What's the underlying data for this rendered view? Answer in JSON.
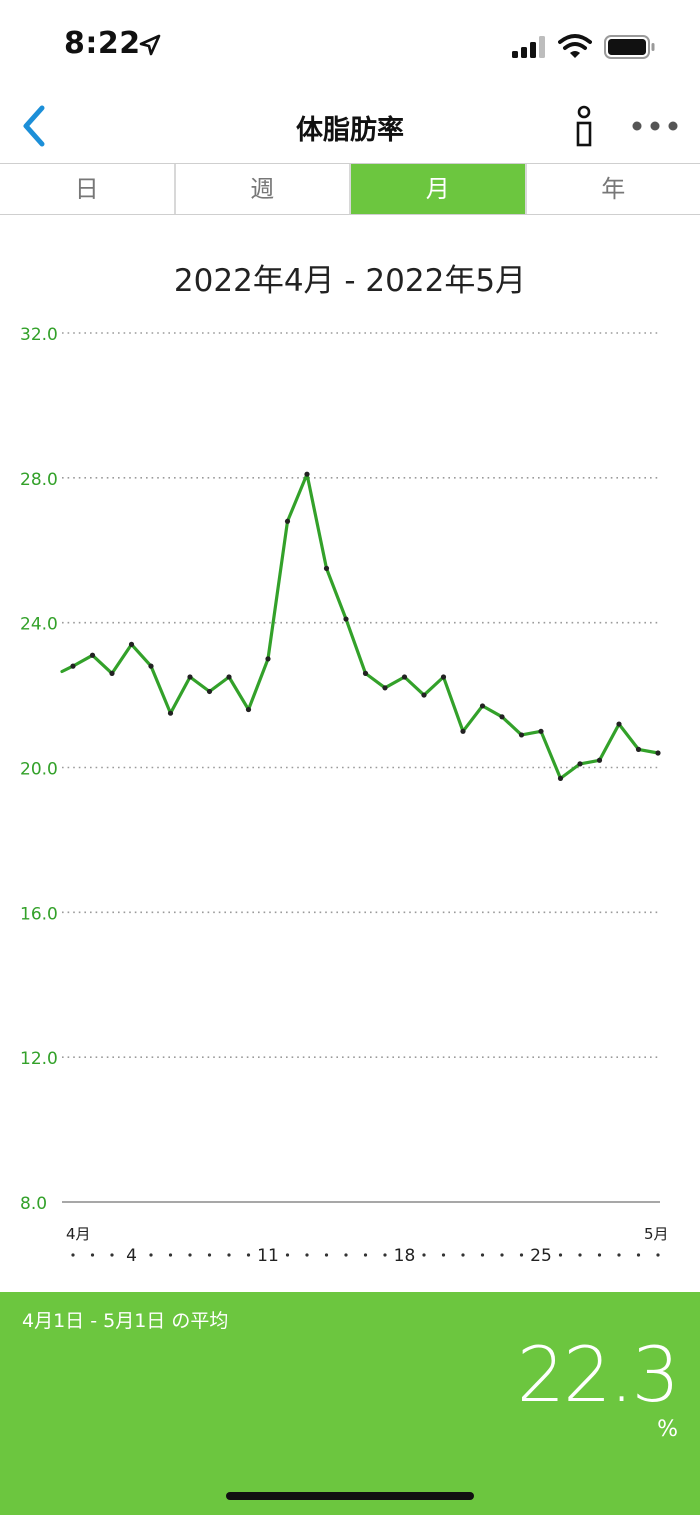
{
  "status_bar": {
    "time": "8:22"
  },
  "nav": {
    "title": "体脂肪率"
  },
  "tabs": [
    {
      "label": "日",
      "active": false
    },
    {
      "label": "週",
      "active": false
    },
    {
      "label": "月",
      "active": true
    },
    {
      "label": "年",
      "active": false
    }
  ],
  "range_title": "2022年4月 - 2022年5月",
  "chart_data": {
    "type": "line",
    "title": "",
    "xlabel": "",
    "ylabel": "",
    "ylim": [
      8.0,
      32.0
    ],
    "y_ticks": [
      "32.0",
      "28.0",
      "24.0",
      "20.0",
      "16.0",
      "12.0",
      "8.0"
    ],
    "x_month_labels": [
      "4月",
      "5月"
    ],
    "x_day_labels": [
      "4",
      "11",
      "18",
      "25"
    ],
    "grid": true,
    "color": "#33a12a",
    "series": [
      {
        "x": [
          "2022-04-01",
          "2022-04-02",
          "2022-04-03",
          "2022-04-04",
          "2022-04-05",
          "2022-04-06",
          "2022-04-07",
          "2022-04-08",
          "2022-04-09",
          "2022-04-10",
          "2022-04-11",
          "2022-04-12",
          "2022-04-13",
          "2022-04-14",
          "2022-04-15",
          "2022-04-16",
          "2022-04-17",
          "2022-04-18",
          "2022-04-19",
          "2022-04-20",
          "2022-04-21",
          "2022-04-22",
          "2022-04-23",
          "2022-04-24",
          "2022-04-25",
          "2022-04-26",
          "2022-04-27",
          "2022-04-28",
          "2022-04-29",
          "2022-04-30",
          "2022-05-01"
        ],
        "values": [
          22.8,
          23.1,
          22.6,
          23.4,
          22.8,
          21.5,
          22.5,
          22.1,
          22.5,
          21.6,
          23.0,
          26.8,
          28.1,
          25.5,
          24.1,
          22.6,
          22.2,
          22.5,
          22.0,
          22.5,
          21.0,
          21.7,
          21.4,
          20.9,
          21.0,
          19.7,
          20.1,
          20.2,
          21.2,
          20.5,
          20.4
        ]
      }
    ]
  },
  "summary": {
    "label": "4月1日 - 5月1日 の平均",
    "value": "22.3",
    "unit": "%"
  }
}
